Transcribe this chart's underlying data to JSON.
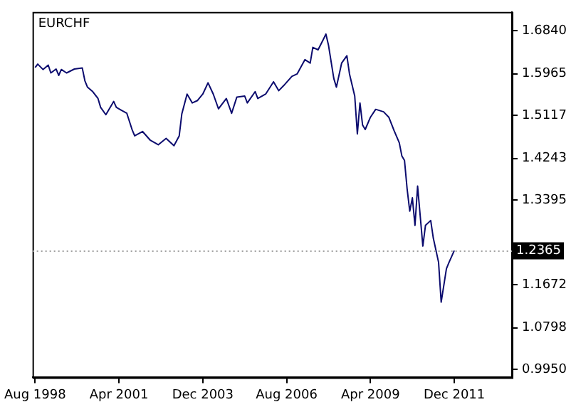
{
  "chart_data": {
    "type": "line",
    "title": "EURCHF",
    "x": [
      "1998-08",
      "1998-09",
      "1998-11",
      "1999-01",
      "1999-02",
      "1999-04",
      "1999-05",
      "1999-06",
      "1999-08",
      "1999-11",
      "2000-02",
      "2000-03",
      "2000-04",
      "2000-06",
      "2000-08",
      "2000-09",
      "2000-11",
      "2001-02",
      "2001-03",
      "2001-05",
      "2001-07",
      "2001-09",
      "2001-10",
      "2002-01",
      "2002-04",
      "2002-07",
      "2002-10",
      "2003-01",
      "2003-03",
      "2003-04",
      "2003-06",
      "2003-08",
      "2003-10",
      "2003-12",
      "2004-02",
      "2004-04",
      "2004-06",
      "2004-09",
      "2004-11",
      "2005-01",
      "2005-04",
      "2005-05",
      "2005-08",
      "2005-09",
      "2005-12",
      "2006-03",
      "2006-05",
      "2006-07",
      "2006-10",
      "2006-12",
      "2007-03",
      "2007-05",
      "2007-06",
      "2007-08",
      "2007-10",
      "2007-11",
      "2007-12",
      "2008-02",
      "2008-03",
      "2008-05",
      "2008-07",
      "2008-08",
      "2008-10",
      "2008-11",
      "2008-12",
      "2009-01",
      "2009-02",
      "2009-04",
      "2009-06",
      "2009-09",
      "2009-11",
      "2010-01",
      "2010-03",
      "2010-04",
      "2010-05",
      "2010-06",
      "2010-07",
      "2010-08",
      "2010-09",
      "2010-10",
      "2010-12",
      "2011-01",
      "2011-03",
      "2011-04",
      "2011-06",
      "2011-07",
      "2011-09",
      "2011-10",
      "2011-12"
    ],
    "series": [
      {
        "color": "#0b0b6e",
        "values": [
          1.609,
          1.616,
          1.605,
          1.614,
          1.598,
          1.606,
          1.593,
          1.605,
          1.598,
          1.606,
          1.608,
          1.582,
          1.569,
          1.56,
          1.546,
          1.528,
          1.513,
          1.54,
          1.528,
          1.522,
          1.516,
          1.483,
          1.47,
          1.479,
          1.461,
          1.452,
          1.465,
          1.45,
          1.47,
          1.515,
          1.555,
          1.537,
          1.542,
          1.555,
          1.578,
          1.555,
          1.525,
          1.546,
          1.516,
          1.549,
          1.551,
          1.537,
          1.56,
          1.546,
          1.555,
          1.58,
          1.562,
          1.573,
          1.591,
          1.596,
          1.625,
          1.618,
          1.65,
          1.645,
          1.666,
          1.677,
          1.654,
          1.587,
          1.569,
          1.618,
          1.633,
          1.596,
          1.551,
          1.474,
          1.537,
          1.492,
          1.483,
          1.508,
          1.524,
          1.519,
          1.508,
          1.481,
          1.456,
          1.429,
          1.42,
          1.362,
          1.317,
          1.344,
          1.288,
          1.368,
          1.246,
          1.288,
          1.298,
          1.262,
          1.213,
          1.132,
          1.2,
          1.213,
          1.237
        ]
      }
    ],
    "xlim": [
      "1998-07",
      "2013-10"
    ],
    "xticks": [
      {
        "value": "1998-08",
        "label": "Aug 1998"
      },
      {
        "value": "2001-04",
        "label": "Apr 2001"
      },
      {
        "value": "2003-12",
        "label": "Dec 2003"
      },
      {
        "value": "2006-08",
        "label": "Aug 2006"
      },
      {
        "value": "2009-04",
        "label": "Apr 2009"
      },
      {
        "value": "2011-12",
        "label": "Dec 2011"
      }
    ],
    "ylim": [
      0.979,
      1.722
    ],
    "yticks": [
      {
        "value": 0.995,
        "label": "0.9950"
      },
      {
        "value": 1.0798,
        "label": "1.0798"
      },
      {
        "value": 1.1672,
        "label": "1.1672"
      },
      {
        "value": 1.252,
        "label": null
      },
      {
        "value": 1.3395,
        "label": "1.3395"
      },
      {
        "value": 1.4243,
        "label": "1.4243"
      },
      {
        "value": 1.5117,
        "label": "1.5117"
      },
      {
        "value": 1.5965,
        "label": "1.5965"
      },
      {
        "value": 1.684,
        "label": "1.6840"
      }
    ],
    "ref_lines": [
      {
        "axis": "y",
        "value": 1.2365,
        "label": "1.2365",
        "color": "#a0a0a0",
        "line_style": "dotted"
      }
    ],
    "grid": false,
    "legend": false
  }
}
